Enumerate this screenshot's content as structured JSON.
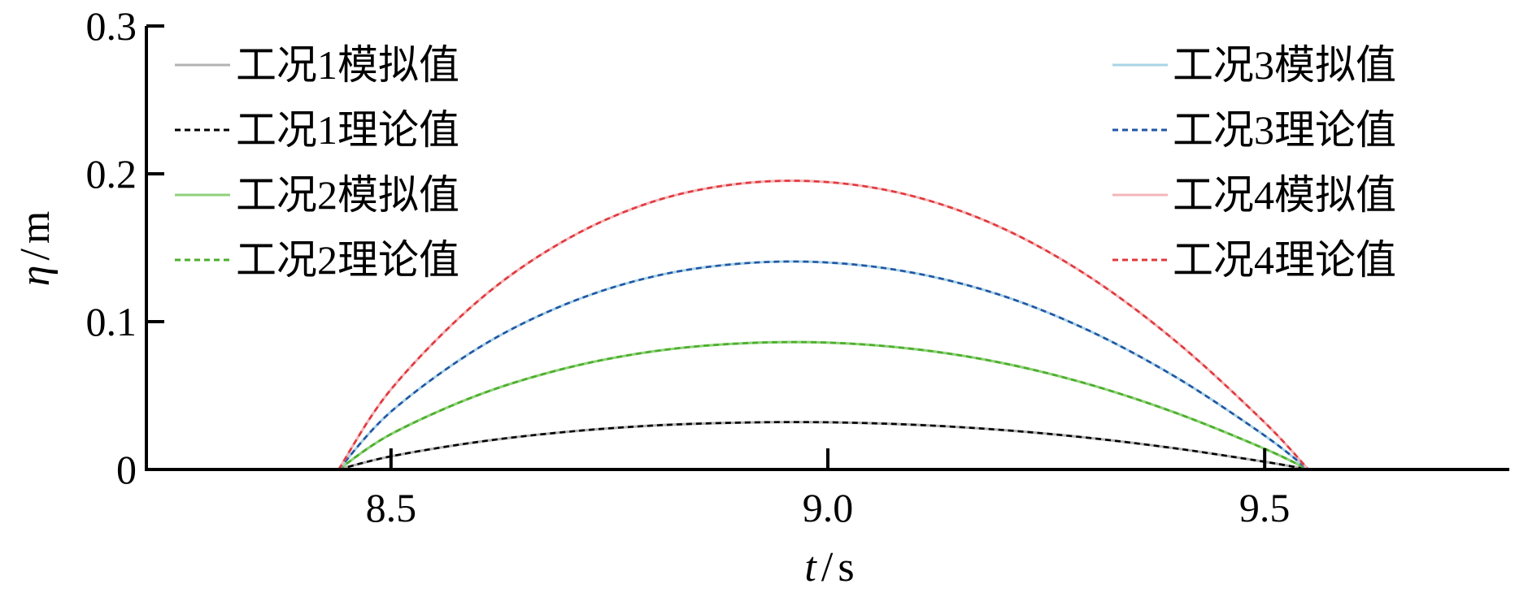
{
  "chart_data": {
    "type": "line",
    "xlabel_var": "t",
    "xlabel_unit": "s",
    "ylabel_var": "η",
    "ylabel_unit": "m",
    "xlim": [
      8.22,
      9.78
    ],
    "ylim": [
      0,
      0.3
    ],
    "xticks": [
      8.5,
      9.0,
      9.5
    ],
    "xtick_labels": [
      "8.5",
      "9.0",
      "9.5"
    ],
    "yticks": [
      0,
      0.1,
      0.2,
      0.3
    ],
    "ytick_labels": [
      "0",
      "0.1",
      "0.2",
      "0.3"
    ],
    "grid": false,
    "legend_placement": "top (two columns: left and right)",
    "x": [
      8.44,
      8.5,
      8.6,
      8.7,
      8.8,
      8.9,
      9.0,
      9.1,
      9.2,
      9.3,
      9.4,
      9.5,
      9.55
    ],
    "series": [
      {
        "name": "工况1模拟值",
        "style": "solid",
        "color": "#b3b3b3",
        "values": [
          0,
          0.0089,
          0.0187,
          0.0254,
          0.0297,
          0.0317,
          0.0319,
          0.0302,
          0.0267,
          0.0213,
          0.0141,
          0.0052,
          0
        ]
      },
      {
        "name": "工况1理论值",
        "style": "dashed",
        "color": "#000000",
        "values": [
          0,
          0.0089,
          0.0187,
          0.0254,
          0.0297,
          0.0317,
          0.0319,
          0.0302,
          0.0267,
          0.0213,
          0.0141,
          0.0052,
          0
        ]
      },
      {
        "name": "工况2模拟值",
        "style": "solid",
        "color": "#8fd27a",
        "values": [
          0,
          0.0239,
          0.0504,
          0.0685,
          0.0799,
          0.0853,
          0.0858,
          0.0814,
          0.072,
          0.0574,
          0.0379,
          0.014,
          0
        ]
      },
      {
        "name": "工况2理论值",
        "style": "dashed",
        "color": "#4cae2c",
        "values": [
          0,
          0.0239,
          0.0504,
          0.0685,
          0.0799,
          0.0853,
          0.0858,
          0.0814,
          0.072,
          0.0574,
          0.0379,
          0.014,
          0
        ]
      },
      {
        "name": "工况3模拟值",
        "style": "solid",
        "color": "#a9d3e6",
        "values": [
          0,
          0.0391,
          0.0822,
          0.1118,
          0.1305,
          0.1393,
          0.14,
          0.1328,
          0.1175,
          0.0936,
          0.0619,
          0.0229,
          0
        ]
      },
      {
        "name": "工况3理论值",
        "style": "dashed",
        "color": "#2255a4",
        "values": [
          0,
          0.0391,
          0.0822,
          0.1118,
          0.1305,
          0.1393,
          0.14,
          0.1328,
          0.1175,
          0.0936,
          0.0619,
          0.0229,
          0
        ]
      },
      {
        "name": "工况4模拟值",
        "style": "solid",
        "color": "#f4b5b8",
        "values": [
          0,
          0.0542,
          0.1142,
          0.1553,
          0.1812,
          0.1934,
          0.1944,
          0.1845,
          0.1632,
          0.1301,
          0.0859,
          0.0318,
          0
        ]
      },
      {
        "name": "工况4理论值",
        "style": "dashed",
        "color": "#e03a3e",
        "values": [
          0,
          0.0542,
          0.1142,
          0.1553,
          0.1812,
          0.1934,
          0.1944,
          0.1845,
          0.1632,
          0.1301,
          0.0859,
          0.0318,
          0
        ]
      }
    ],
    "legend_left": [
      "工况1模拟值",
      "工况1理论值",
      "工况2模拟值",
      "工况2理论值"
    ],
    "legend_right": [
      "工况3模拟值",
      "工况3理论值",
      "工况4模拟值",
      "工况4理论值"
    ]
  }
}
